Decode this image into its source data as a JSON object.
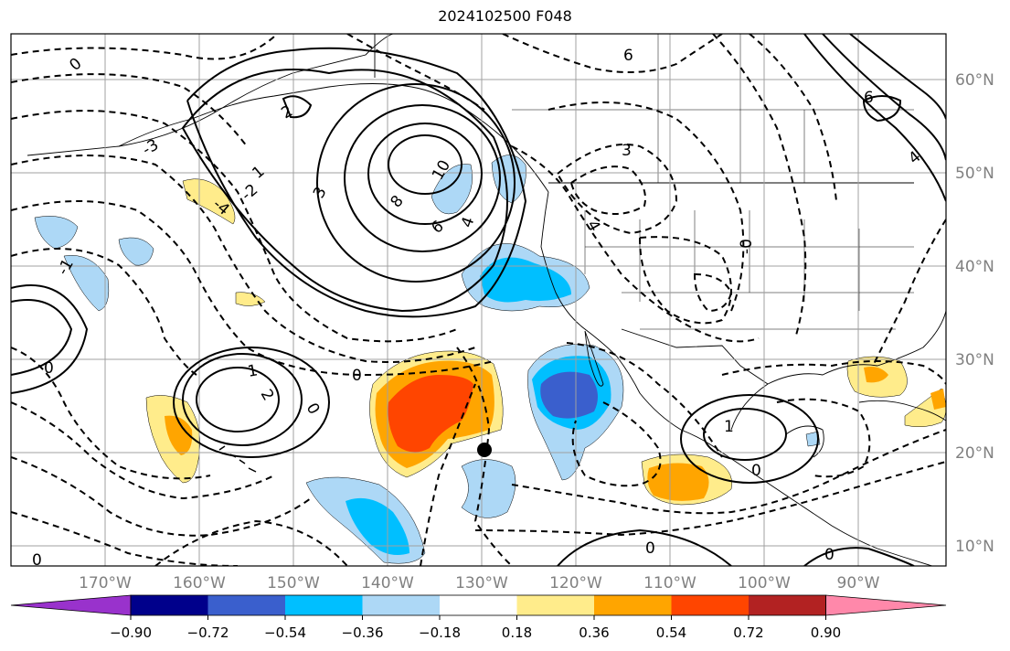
{
  "title": "2024102500 F048",
  "map": {
    "lon_labels": [
      "170°W",
      "160°W",
      "150°W",
      "140°W",
      "130°W",
      "120°W",
      "110°W",
      "100°W",
      "90°W"
    ],
    "lat_labels": [
      "60°N",
      "50°N",
      "40°N",
      "30°N",
      "20°N",
      "10°N"
    ],
    "label_color": "#808080",
    "grid_color": "#a0a0a0",
    "contour_labels": [
      "0",
      "2",
      "4",
      "6",
      "8",
      "10",
      "3",
      "1",
      "-1",
      "-2",
      "-3",
      "-4",
      "2",
      "0",
      "1",
      "0",
      "0",
      "0",
      "3",
      "6",
      "4",
      "6",
      "0",
      "0",
      "-0",
      "0",
      "1",
      "4"
    ],
    "marker": "filled black dot near 130°W 20°N"
  },
  "colorbar": {
    "colors": [
      "#9932cc",
      "#00008b",
      "#3a5fcd",
      "#00bfff",
      "#add8f6",
      "#ffffff",
      "#ffec8b",
      "#ffa500",
      "#ff4500",
      "#b22222",
      "#ff88aa"
    ],
    "tick_labels": [
      "−0.90",
      "−0.72",
      "−0.54",
      "−0.36",
      "−0.18",
      "0.18",
      "0.36",
      "0.54",
      "0.72",
      "0.90"
    ]
  }
}
